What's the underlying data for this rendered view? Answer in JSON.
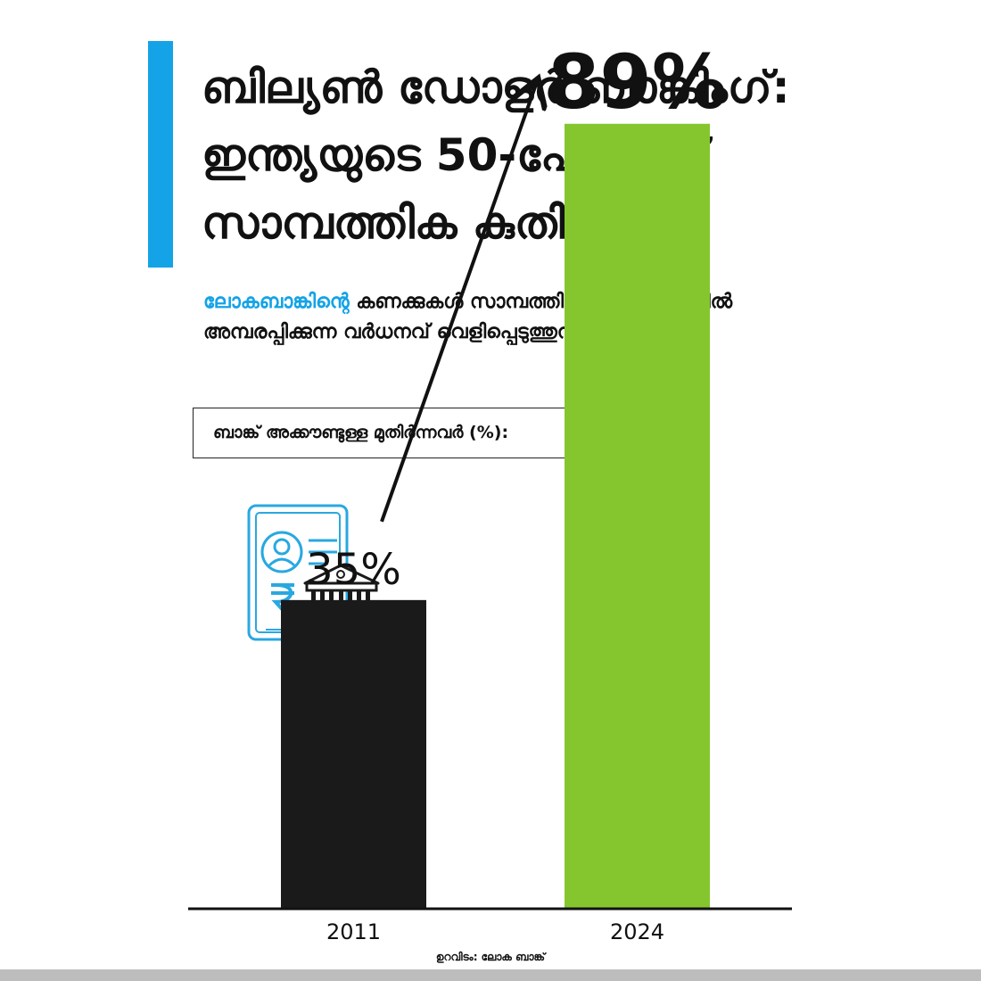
{
  "title": {
    "line1": "ബില്യൺ ഡോളർ ബാങ്കിംഗ്:",
    "line2": "ഇന്ത്യയുടെ 50-പോയിന്റ്",
    "line3": "സാമ്പത്തിക കുതിപ്പ്!"
  },
  "subtitle": {
    "highlight": "ലോകബാങ്കിന്റെ",
    "line1_rest": " കണക്കുകൾ സാമ്പത്തിക പ്രവേശനത്തിൽ",
    "line2": "അമ്പരപ്പിക്കുന്ന വർധനവ് വെളിപ്പെടുത്തുന്നു"
  },
  "colors": {
    "accent": "#14a3e6",
    "bar_2011": "#1a1a1a",
    "bar_2024": "#85c62f",
    "icon": "#29a8e0"
  },
  "icons": [
    "bank-document-icon",
    "bank-building-icon",
    "rupee-icon",
    "trend-arrow-icon"
  ],
  "source": "ഉറവിടം: ലോക ബാങ്ക്",
  "chart_data": {
    "type": "bar",
    "ylabel": "ബാങ്ക് അക്കൗണ്ടുള്ള മുതിർന്നവർ (%):",
    "categories": [
      "2011",
      "2024"
    ],
    "values": [
      35,
      89
    ],
    "data_labels": [
      "35%",
      "89%"
    ],
    "ylim": [
      0,
      100
    ],
    "grid": false,
    "legend": "none"
  }
}
